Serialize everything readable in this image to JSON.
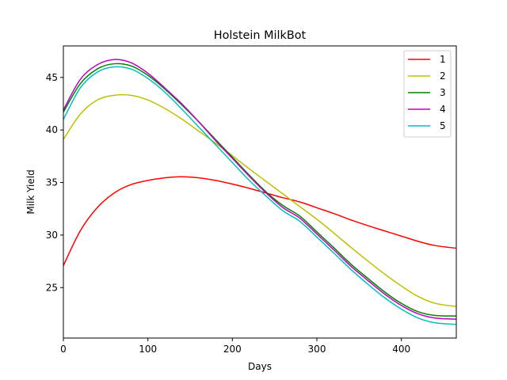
{
  "chart_data": {
    "type": "line",
    "title": "Holstein MilkBot",
    "xlabel": "Days",
    "ylabel": "Milk Yield",
    "xlim": [
      0,
      465
    ],
    "ylim": [
      20.2,
      48.0
    ],
    "xticks": [
      0,
      100,
      200,
      300,
      400
    ],
    "yticks": [
      25,
      30,
      35,
      40,
      45
    ],
    "grid": false,
    "legend_position": "top-right",
    "x": [
      0,
      20,
      40,
      60,
      80,
      100,
      120,
      140,
      160,
      180,
      200,
      220,
      240,
      260,
      280,
      300,
      320,
      340,
      360,
      380,
      400,
      420,
      440,
      465
    ],
    "series": [
      {
        "name": "1",
        "color": "#ff0000",
        "values": [
          27.1,
          30.4,
          32.6,
          34.0,
          34.8,
          35.2,
          35.45,
          35.55,
          35.45,
          35.2,
          34.85,
          34.45,
          34.0,
          33.55,
          33.15,
          32.6,
          32.05,
          31.45,
          30.9,
          30.4,
          29.9,
          29.4,
          29.0,
          28.75
        ]
      },
      {
        "name": "2",
        "color": "#bfbf00",
        "values": [
          39.1,
          41.5,
          42.85,
          43.3,
          43.3,
          42.85,
          42.05,
          41.05,
          39.9,
          38.75,
          37.55,
          36.3,
          35.1,
          33.9,
          32.7,
          31.5,
          30.2,
          28.85,
          27.55,
          26.3,
          25.15,
          24.15,
          23.5,
          23.2
        ]
      },
      {
        "name": "3",
        "color": "#008000",
        "values": [
          41.7,
          44.4,
          45.8,
          46.3,
          46.1,
          45.2,
          43.9,
          42.4,
          40.8,
          39.1,
          37.4,
          35.7,
          34.1,
          32.8,
          31.8,
          30.3,
          28.8,
          27.25,
          25.9,
          24.6,
          23.5,
          22.7,
          22.35,
          22.3
        ]
      },
      {
        "name": "4",
        "color": "#bf00bf",
        "values": [
          41.9,
          44.8,
          46.2,
          46.7,
          46.4,
          45.4,
          44.0,
          42.5,
          40.8,
          39.0,
          37.3,
          35.6,
          34.0,
          32.6,
          31.6,
          30.1,
          28.6,
          27.05,
          25.7,
          24.4,
          23.3,
          22.5,
          22.1,
          22.0
        ]
      },
      {
        "name": "5",
        "color": "#00bfbf",
        "values": [
          41.0,
          44.0,
          45.5,
          46.0,
          45.8,
          44.9,
          43.6,
          42.0,
          40.3,
          38.6,
          36.9,
          35.2,
          33.7,
          32.3,
          31.3,
          29.8,
          28.3,
          26.75,
          25.35,
          24.05,
          22.95,
          22.1,
          21.65,
          21.5
        ]
      }
    ]
  }
}
